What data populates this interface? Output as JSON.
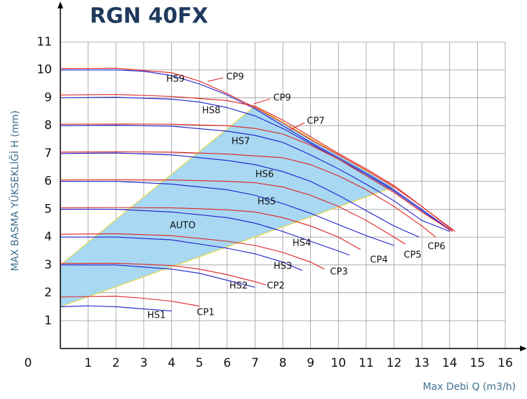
{
  "chart_data": {
    "type": "line",
    "title": "RGN 40FX",
    "xlabel": "Max Debi Q (m3/h)",
    "ylabel": "MAX BASMA YÜKSEKLİĞİ H (mm)",
    "xlim": [
      0,
      16
    ],
    "ylim": [
      0,
      11
    ],
    "xticks": [
      0,
      1,
      2,
      3,
      4,
      5,
      6,
      7,
      8,
      9,
      10,
      11,
      12,
      13,
      14,
      15,
      16
    ],
    "yticks": [
      1,
      2,
      3,
      4,
      5,
      6,
      7,
      8,
      9,
      10,
      11
    ],
    "grid": true,
    "auto_region": {
      "label": "AUTO",
      "color": "#a8d8f2",
      "edge_color": "#e8d84a",
      "x": [
        0,
        7,
        12,
        0
      ],
      "y": [
        3.0,
        8.7,
        5.8,
        1.5
      ]
    },
    "series": [
      {
        "name": "HS1",
        "color": "#1c1ccc",
        "x": [
          0,
          1,
          2,
          3,
          4
        ],
        "values": [
          1.5,
          1.53,
          1.5,
          1.42,
          1.35
        ]
      },
      {
        "name": "HS2",
        "color": "#1c1ccc",
        "x": [
          0,
          2,
          4,
          5,
          6,
          7
        ],
        "values": [
          3.0,
          3.0,
          2.85,
          2.7,
          2.45,
          2.2
        ]
      },
      {
        "name": "HS3",
        "color": "#1c1ccc",
        "x": [
          0,
          2,
          4,
          6,
          7,
          8,
          8.7
        ],
        "values": [
          4.0,
          4.0,
          3.9,
          3.6,
          3.4,
          3.1,
          2.8
        ]
      },
      {
        "name": "HS4",
        "color": "#1c1ccc",
        "x": [
          0,
          2,
          4,
          6,
          7,
          8,
          9,
          10,
          10.4
        ],
        "values": [
          5.0,
          5.0,
          4.9,
          4.7,
          4.5,
          4.2,
          3.85,
          3.5,
          3.35
        ]
      },
      {
        "name": "HS5",
        "color": "#1c1ccc",
        "x": [
          0,
          2,
          4,
          6,
          7,
          8,
          9,
          10,
          11,
          12
        ],
        "values": [
          6.0,
          6.0,
          5.9,
          5.7,
          5.5,
          5.2,
          4.85,
          4.45,
          4.05,
          3.7
        ]
      },
      {
        "name": "HS6",
        "color": "#1c1ccc",
        "x": [
          0,
          2,
          4,
          6,
          7,
          8,
          9,
          10,
          11,
          12,
          12.9
        ],
        "values": [
          7.0,
          7.02,
          6.95,
          6.75,
          6.6,
          6.35,
          6.0,
          5.5,
          4.95,
          4.4,
          4.0
        ]
      },
      {
        "name": "HS7",
        "color": "#1c1ccc",
        "x": [
          0,
          2,
          4,
          6,
          7,
          8,
          9,
          10,
          11,
          12,
          13,
          14
        ],
        "values": [
          8.0,
          8.02,
          7.98,
          7.8,
          7.65,
          7.4,
          6.95,
          6.45,
          5.9,
          5.3,
          4.6,
          4.2
        ]
      },
      {
        "name": "HS8",
        "color": "#1c1ccc",
        "x": [
          0,
          2,
          4,
          5,
          6,
          7,
          8,
          9,
          10,
          11,
          12,
          13,
          14
        ],
        "values": [
          9.0,
          9.02,
          8.95,
          8.85,
          8.65,
          8.35,
          7.9,
          7.35,
          6.8,
          6.25,
          5.65,
          4.95,
          4.25
        ]
      },
      {
        "name": "HS9",
        "color": "#1c1ccc",
        "x": [
          0,
          2,
          3,
          4,
          5,
          6,
          7,
          8,
          9,
          10,
          11,
          12,
          13,
          14.1
        ],
        "values": [
          10.0,
          10.0,
          9.95,
          9.8,
          9.5,
          9.1,
          8.6,
          8.0,
          7.4,
          6.85,
          6.3,
          5.7,
          5.0,
          4.2
        ]
      },
      {
        "name": "CP1",
        "color": "#e02020",
        "x": [
          0,
          2,
          3,
          4,
          5
        ],
        "values": [
          1.85,
          1.88,
          1.8,
          1.7,
          1.52
        ]
      },
      {
        "name": "CP2",
        "color": "#e02020",
        "x": [
          0,
          2,
          4,
          5,
          6,
          7,
          7.4
        ],
        "values": [
          3.05,
          3.06,
          2.98,
          2.85,
          2.65,
          2.4,
          2.28
        ]
      },
      {
        "name": "CP3",
        "color": "#e02020",
        "x": [
          0,
          2,
          4,
          6,
          7,
          8,
          9,
          9.5
        ],
        "values": [
          4.1,
          4.12,
          4.05,
          3.85,
          3.7,
          3.45,
          3.1,
          2.85
        ]
      },
      {
        "name": "CP4",
        "color": "#e02020",
        "x": [
          0,
          2,
          4,
          6,
          7,
          8,
          9,
          10,
          10.8
        ],
        "values": [
          5.05,
          5.06,
          5.05,
          4.98,
          4.9,
          4.7,
          4.4,
          4.0,
          3.55
        ]
      },
      {
        "name": "CP5",
        "color": "#e02020",
        "x": [
          0,
          2,
          4,
          6,
          7,
          8,
          9,
          10,
          11,
          12,
          12.4
        ],
        "values": [
          6.05,
          6.06,
          6.05,
          6.0,
          5.95,
          5.8,
          5.5,
          5.1,
          4.6,
          4.0,
          3.75
        ]
      },
      {
        "name": "CP6",
        "color": "#e02020",
        "x": [
          0,
          2,
          4,
          6,
          8,
          9,
          10,
          11,
          12,
          13,
          13.5
        ],
        "values": [
          7.05,
          7.06,
          7.05,
          6.98,
          6.85,
          6.6,
          6.2,
          5.7,
          5.1,
          4.4,
          4.0
        ]
      },
      {
        "name": "CP7",
        "color": "#e02020",
        "x": [
          0,
          2,
          4,
          6,
          7,
          8,
          9,
          10,
          11,
          12,
          13,
          14.1
        ],
        "values": [
          8.05,
          8.06,
          8.05,
          8.0,
          7.9,
          7.7,
          7.3,
          6.8,
          6.2,
          5.6,
          4.9,
          4.2
        ]
      },
      {
        "name": "CP9",
        "color": "#e02020",
        "x": [
          0,
          2,
          4,
          6,
          7,
          8,
          9,
          10,
          11,
          12,
          13,
          14.1
        ],
        "values": [
          9.1,
          9.12,
          9.05,
          8.9,
          8.7,
          8.2,
          7.6,
          7.0,
          6.45,
          5.85,
          5.1,
          4.25
        ]
      },
      {
        "name": "CP9",
        "color": "#e02020",
        "x": [
          0,
          2,
          4,
          5,
          6,
          7,
          8,
          9,
          10,
          11,
          12,
          13,
          14.2
        ],
        "values": [
          10.05,
          10.06,
          9.9,
          9.6,
          9.15,
          8.65,
          8.1,
          7.5,
          6.95,
          6.4,
          5.8,
          5.1,
          4.2
        ]
      }
    ]
  }
}
